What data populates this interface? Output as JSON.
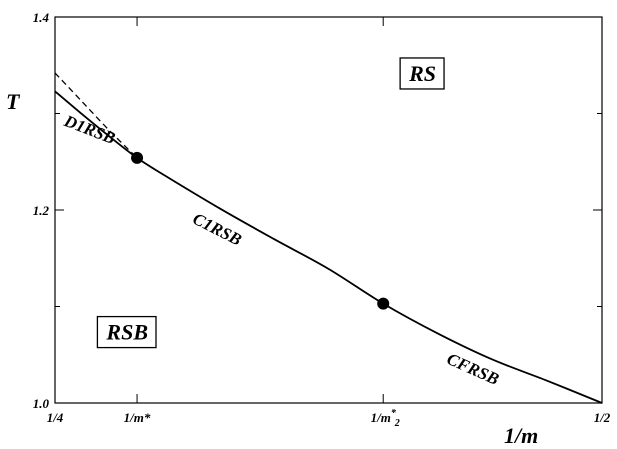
{
  "chart_data": {
    "type": "line",
    "title": "",
    "xlabel": "1/m",
    "ylabel": "T",
    "xlim": [
      0.25,
      0.5
    ],
    "ylim": [
      1.0,
      1.4
    ],
    "x_ticks": [
      {
        "value": 0.25,
        "label": "1/4"
      },
      {
        "value": 0.2875,
        "label": "1/m*"
      },
      {
        "value": 0.4,
        "label": "1/m",
        "sub": "2",
        "sup": "*"
      },
      {
        "value": 0.5,
        "label": "1/2"
      }
    ],
    "y_ticks": [
      {
        "value": 1.0,
        "label": "1.0"
      },
      {
        "value": 1.2,
        "label": "1.2"
      },
      {
        "value": 1.4,
        "label": "1.4"
      }
    ],
    "y_minor_ticks": [
      1.1,
      1.3
    ],
    "series": [
      {
        "style": "solid",
        "x": [
          0.25,
          0.2625,
          0.275,
          0.2875,
          0.3,
          0.325,
          0.35,
          0.375,
          0.4,
          0.425,
          0.45,
          0.475,
          0.5
        ],
        "y": [
          1.323,
          1.299,
          1.276,
          1.254,
          1.236,
          1.202,
          1.17,
          1.139,
          1.103,
          1.072,
          1.045,
          1.023,
          1.0
        ]
      },
      {
        "style": "dashed",
        "x": [
          0.25,
          0.2625,
          0.275,
          0.2875
        ],
        "y": [
          1.342,
          1.312,
          1.282,
          1.254
        ]
      }
    ],
    "points": [
      {
        "x": 0.2875,
        "y": 1.254
      },
      {
        "x": 0.4,
        "y": 1.103
      }
    ],
    "region_labels": [
      {
        "text": "RS",
        "x": 0.418,
        "y": 1.342
      },
      {
        "text": "RSB",
        "x": 0.283,
        "y": 1.074
      }
    ],
    "curve_labels": [
      {
        "text": "D1RSB",
        "x": 0.265,
        "y": 1.278,
        "angle": 21
      },
      {
        "text": "C1RSB",
        "x": 0.323,
        "y": 1.175,
        "angle": 27
      },
      {
        "text": "CFRSB",
        "x": 0.44,
        "y": 1.03,
        "angle": 24
      }
    ]
  }
}
